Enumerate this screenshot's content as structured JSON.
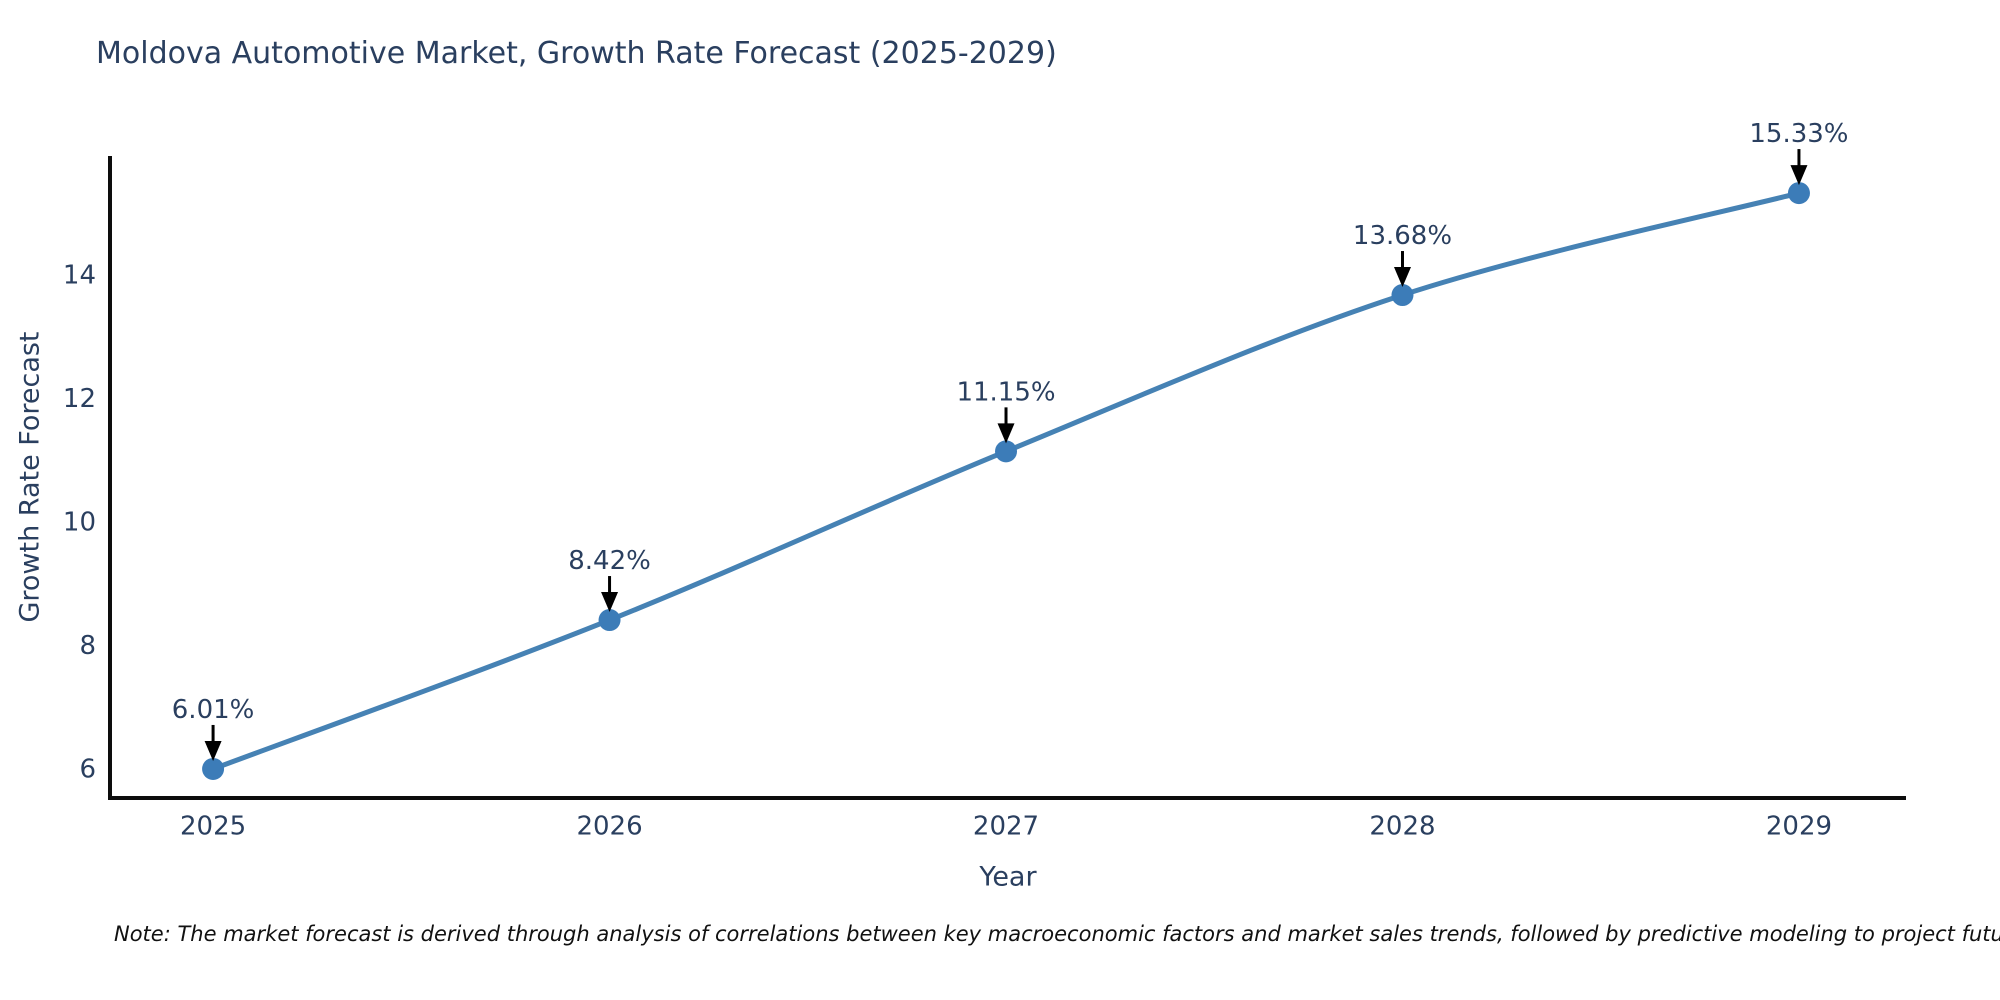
{
  "title": "Moldova Automotive Market, Growth Rate Forecast (2025-2029)",
  "note": "Note: The market forecast is derived through analysis of correlations between key macroeconomic factors and market sales trends, followed by predictive modeling to project future sales",
  "chart_data": {
    "type": "line",
    "title": "Moldova Automotive Market, Growth Rate Forecast (2025-2029)",
    "xlabel": "Year",
    "ylabel": "Growth Rate Forecast",
    "x": [
      2025,
      2026,
      2027,
      2028,
      2029
    ],
    "series": [
      {
        "name": "Growth Rate Forecast",
        "values": [
          6.01,
          8.42,
          11.15,
          13.68,
          15.33
        ]
      }
    ],
    "point_labels": [
      "6.01%",
      "8.42%",
      "11.15%",
      "13.68%",
      "15.33%"
    ],
    "xticks": [
      "2025",
      "2026",
      "2027",
      "2028",
      "2029"
    ],
    "yticks": [
      6,
      8,
      10,
      12,
      14
    ],
    "xlim": [
      2024.74,
      2029.27
    ],
    "ylim": [
      5.54,
      15.93
    ],
    "grid": false,
    "legend": "none",
    "annotation_style": "arrow-down-to-point",
    "colors": {
      "line": "#4682b4",
      "marker": "#3c7cb8",
      "axis": "#0d0d0d",
      "text": "#2a3f5f",
      "arrow": "#000000",
      "note": "#111111",
      "background": "#ffffff"
    }
  }
}
